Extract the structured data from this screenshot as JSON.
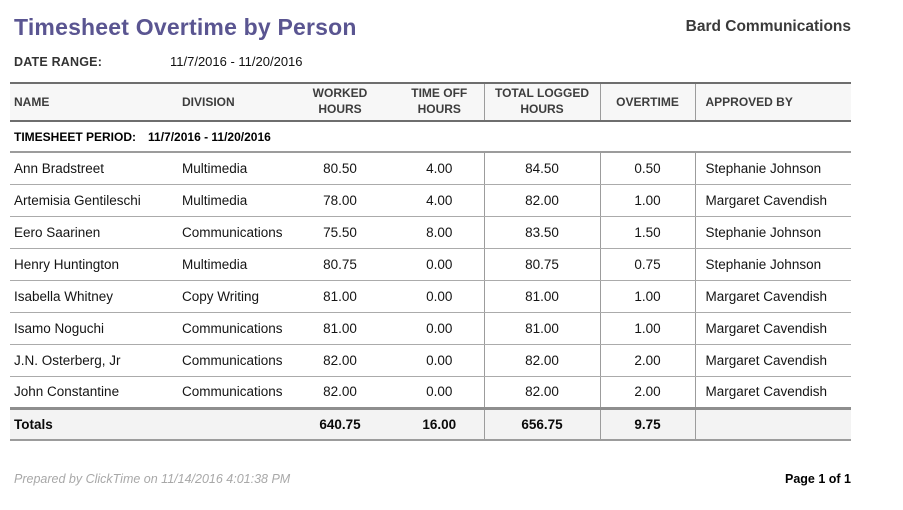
{
  "report": {
    "title": "Timesheet Overtime by Person",
    "company": "Bard Communications",
    "date_range_label": "DATE RANGE:",
    "date_range_value": "11/7/2016 - 11/20/2016"
  },
  "table": {
    "columns": [
      "NAME",
      "DIVISION",
      "WORKED HOURS",
      "TIME OFF HOURS",
      "TOTAL LOGGED HOURS",
      "OVERTIME",
      "APPROVED BY"
    ],
    "period_label": "TIMESHEET PERIOD:",
    "period_value": "11/7/2016 - 11/20/2016",
    "rows": [
      {
        "name": "Ann Bradstreet",
        "division": "Multimedia",
        "worked": "80.50",
        "time_off": "4.00",
        "total_logged": "84.50",
        "overtime": "0.50",
        "approved_by": "Stephanie Johnson"
      },
      {
        "name": "Artemisia Gentileschi",
        "division": "Multimedia",
        "worked": "78.00",
        "time_off": "4.00",
        "total_logged": "82.00",
        "overtime": "1.00",
        "approved_by": "Margaret Cavendish"
      },
      {
        "name": "Eero Saarinen",
        "division": "Communications",
        "worked": "75.50",
        "time_off": "8.00",
        "total_logged": "83.50",
        "overtime": "1.50",
        "approved_by": "Stephanie Johnson"
      },
      {
        "name": "Henry Huntington",
        "division": "Multimedia",
        "worked": "80.75",
        "time_off": "0.00",
        "total_logged": "80.75",
        "overtime": "0.75",
        "approved_by": "Stephanie Johnson"
      },
      {
        "name": "Isabella Whitney",
        "division": "Copy Writing",
        "worked": "81.00",
        "time_off": "0.00",
        "total_logged": "81.00",
        "overtime": "1.00",
        "approved_by": "Margaret Cavendish"
      },
      {
        "name": "Isamo Noguchi",
        "division": "Communications",
        "worked": "81.00",
        "time_off": "0.00",
        "total_logged": "81.00",
        "overtime": "1.00",
        "approved_by": "Margaret Cavendish"
      },
      {
        "name": "J.N. Osterberg, Jr",
        "division": "Communications",
        "worked": "82.00",
        "time_off": "0.00",
        "total_logged": "82.00",
        "overtime": "2.00",
        "approved_by": "Margaret Cavendish"
      },
      {
        "name": "John Constantine",
        "division": "Communications",
        "worked": "82.00",
        "time_off": "0.00",
        "total_logged": "82.00",
        "overtime": "2.00",
        "approved_by": "Margaret Cavendish"
      }
    ],
    "totals": {
      "label": "Totals",
      "worked": "640.75",
      "time_off": "16.00",
      "total_logged": "656.75",
      "overtime": "9.75",
      "approved_by": ""
    }
  },
  "footer": {
    "prepared_by": "Prepared by ClickTime on 11/14/2016 4:01:38 PM",
    "page": "Page 1 of 1"
  },
  "colors": {
    "title": "#5a5591",
    "header_bg": "#f7f7f7",
    "totals_bg": "#f3f3f3",
    "border_dark": "#6e6e6e",
    "border_mid": "#9c9c9c",
    "border_light": "#ababab"
  }
}
